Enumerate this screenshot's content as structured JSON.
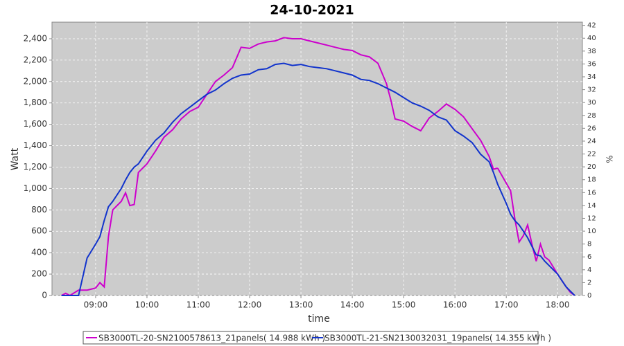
{
  "chart_data": {
    "type": "line",
    "title": "24-10-2021",
    "x_label": "time",
    "y_label": "Watt",
    "y2_label": "%",
    "x": [
      "08:20",
      "08:25",
      "08:30",
      "08:40",
      "08:50",
      "09:00",
      "09:05",
      "09:10",
      "09:15",
      "09:20",
      "09:30",
      "09:35",
      "09:40",
      "09:45",
      "09:50",
      "10:00",
      "10:10",
      "10:20",
      "10:30",
      "10:40",
      "10:50",
      "11:00",
      "11:10",
      "11:20",
      "11:30",
      "11:40",
      "11:50",
      "12:00",
      "12:10",
      "12:20",
      "12:30",
      "12:40",
      "12:50",
      "13:00",
      "13:10",
      "13:20",
      "13:30",
      "13:40",
      "13:50",
      "14:00",
      "14:10",
      "14:20",
      "14:30",
      "14:40",
      "14:45",
      "14:50",
      "15:00",
      "15:10",
      "15:20",
      "15:30",
      "15:40",
      "15:50",
      "16:00",
      "16:10",
      "16:20",
      "16:30",
      "16:40",
      "16:45",
      "16:50",
      "17:00",
      "17:05",
      "17:10",
      "17:15",
      "17:20",
      "17:25",
      "17:30",
      "17:35",
      "17:40",
      "17:45",
      "17:50",
      "18:00",
      "18:05",
      "18:10",
      "18:15",
      "18:20"
    ],
    "series": [
      {
        "name": "SB3000TL-20-SN2100578613_21panels( 14.988 kWh )",
        "color": "#cc00cc",
        "values": [
          0,
          20,
          0,
          50,
          50,
          70,
          120,
          80,
          550,
          800,
          880,
          960,
          840,
          850,
          1150,
          1230,
          1350,
          1480,
          1550,
          1650,
          1720,
          1760,
          1880,
          2000,
          2060,
          2130,
          2320,
          2310,
          2350,
          2370,
          2380,
          2410,
          2400,
          2400,
          2380,
          2360,
          2340,
          2320,
          2300,
          2290,
          2250,
          2230,
          2170,
          1980,
          1830,
          1650,
          1630,
          1580,
          1540,
          1660,
          1720,
          1790,
          1740,
          1670,
          1560,
          1450,
          1300,
          1180,
          1190,
          1050,
          980,
          720,
          500,
          560,
          660,
          480,
          320,
          480,
          360,
          330,
          200,
          140,
          80,
          30,
          0
        ]
      },
      {
        "name": "SB3000TL-21-SN2130032031_19panels( 14.355 kWh )",
        "color": "#1133cc",
        "values": [
          0,
          0,
          0,
          0,
          350,
          480,
          550,
          700,
          830,
          880,
          1000,
          1080,
          1150,
          1200,
          1230,
          1350,
          1450,
          1520,
          1620,
          1700,
          1760,
          1820,
          1880,
          1920,
          1980,
          2030,
          2060,
          2070,
          2110,
          2120,
          2160,
          2170,
          2150,
          2160,
          2140,
          2130,
          2120,
          2100,
          2080,
          2060,
          2020,
          2010,
          1980,
          1940,
          1920,
          1900,
          1850,
          1800,
          1770,
          1730,
          1670,
          1640,
          1540,
          1490,
          1430,
          1320,
          1250,
          1150,
          1040,
          860,
          760,
          700,
          660,
          600,
          540,
          460,
          380,
          370,
          320,
          280,
          200,
          140,
          80,
          40,
          0
        ]
      }
    ],
    "xlim": [
      "08:09",
      "18:29"
    ],
    "xticks": [
      "09:00",
      "10:00",
      "11:00",
      "12:00",
      "13:00",
      "14:00",
      "15:00",
      "16:00",
      "17:00",
      "18:00"
    ],
    "ylim": [
      0,
      2555
    ],
    "yticks": [
      0,
      200,
      400,
      600,
      800,
      {
        "value": 1000,
        "label": "1,000"
      },
      {
        "value": 1200,
        "label": "1,200"
      },
      {
        "value": 1400,
        "label": "1,400"
      },
      {
        "value": 1600,
        "label": "1,600"
      },
      {
        "value": 1800,
        "label": "1,800"
      },
      {
        "value": 2000,
        "label": "2,000"
      },
      {
        "value": 2200,
        "label": "2,200"
      },
      {
        "value": 2400,
        "label": "2,400"
      }
    ],
    "y2lim": [
      0,
      42.5
    ],
    "y2ticks": [
      0,
      2,
      4,
      6,
      8,
      10,
      12,
      14,
      16,
      18,
      20,
      22,
      24,
      26,
      28,
      30,
      32,
      34,
      36,
      38,
      40,
      42
    ],
    "grid": true
  }
}
